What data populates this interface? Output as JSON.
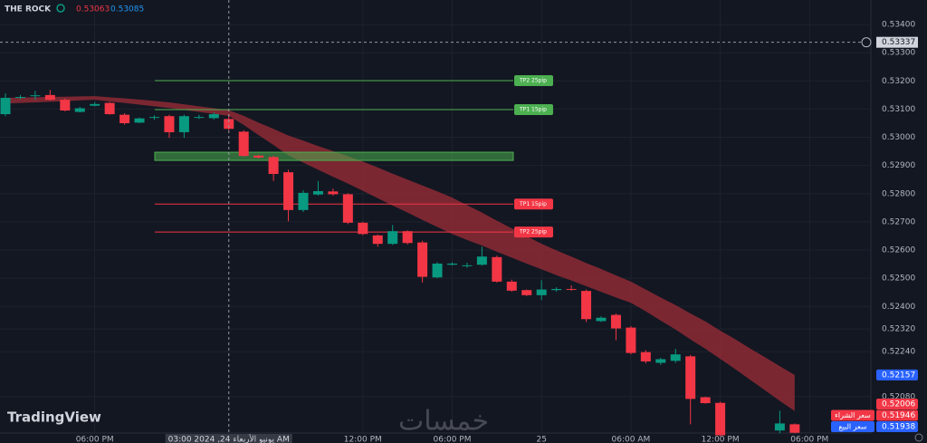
{
  "chart_data": {
    "type": "candlestick",
    "title": "THE ROCK",
    "header": {
      "values": [
        0.53063,
        0.53085
      ],
      "colors": [
        "#f23645",
        "#2196f3"
      ]
    },
    "watermarks": [
      "TradingView",
      "خمسات"
    ],
    "categories": [
      null,
      null,
      null,
      null,
      null,
      null,
      "06:00 PM",
      null,
      null,
      null,
      null,
      null,
      null,
      null,
      null,
      "03:00 2024 ,24 يونيو الأربعاء AM",
      null,
      null,
      null,
      null,
      null,
      null,
      null,
      null,
      "12:00 PM",
      null,
      null,
      null,
      null,
      null,
      "06:00 PM",
      null,
      null,
      null,
      null,
      null,
      "25",
      null,
      null,
      null,
      null,
      null,
      "06:00 AM",
      null,
      null,
      null,
      null,
      null,
      "12:00 PM",
      null,
      null,
      null,
      null,
      null,
      "06:00 PM"
    ],
    "open": [
      0.53082,
      0.5314,
      0.53146,
      0.5315,
      0.53133,
      0.5309,
      0.53112,
      0.53122,
      0.5308,
      0.53052,
      0.5307,
      0.53075,
      0.53018,
      0.5307,
      0.53068,
      0.53065,
      0.5302,
      0.52935,
      0.5293,
      0.52876,
      0.52742,
      0.52797,
      0.52808,
      0.52798,
      0.52697,
      0.52652,
      0.52622,
      0.52667,
      0.52627,
      0.52503,
      0.52548,
      0.52543,
      0.52548,
      0.52575,
      0.52488,
      0.52458,
      0.5244,
      0.52458,
      0.52462,
      0.52455,
      0.52348,
      0.5237,
      0.52325,
      0.52238,
      0.522,
      0.52207,
      0.52223,
      0.52078,
      0.52058,
      null,
      null,
      null,
      0.5196,
      0.51982,
      null
    ],
    "high": [
      0.53156,
      0.5315,
      0.53165,
      0.53168,
      0.53138,
      0.53108,
      0.53125,
      0.53125,
      0.53085,
      0.5307,
      0.53078,
      0.5308,
      0.5308,
      0.5308,
      0.53088,
      0.53083,
      0.53025,
      0.52938,
      0.52935,
      0.52885,
      0.52812,
      0.52845,
      0.52818,
      0.52802,
      0.527,
      0.52655,
      0.52689,
      0.5267,
      0.52633,
      0.52557,
      0.52557,
      0.52555,
      0.52612,
      0.5258,
      0.52495,
      0.5246,
      0.52493,
      0.52468,
      0.52475,
      0.5246,
      0.52365,
      0.52375,
      0.5233,
      0.52245,
      0.52218,
      0.5225,
      0.52228,
      0.5208,
      0.52062,
      null,
      null,
      null,
      0.5203,
      0.51985,
      null
    ],
    "low": [
      0.53075,
      0.53135,
      0.53133,
      0.5313,
      0.53092,
      0.53088,
      0.5311,
      0.5308,
      0.53045,
      0.5305,
      0.53062,
      0.52998,
      0.52998,
      0.53065,
      0.53063,
      0.53025,
      0.5293,
      0.52925,
      0.52845,
      0.52702,
      0.52735,
      0.52793,
      0.52793,
      0.52692,
      0.52653,
      0.52612,
      0.52618,
      0.5262,
      0.52485,
      0.525,
      0.52545,
      0.52537,
      0.52545,
      0.52485,
      0.52452,
      0.52437,
      0.52423,
      0.52452,
      0.52455,
      0.52345,
      0.52345,
      0.5228,
      0.5223,
      0.52198,
      0.52193,
      0.522,
      0.51982,
      0.52055,
      0.5194,
      null,
      null,
      null,
      0.5195,
      0.5195,
      null
    ],
    "close": [
      0.5314,
      0.53143,
      0.53149,
      0.53133,
      0.53095,
      0.53103,
      0.53118,
      0.53082,
      0.5305,
      0.53067,
      0.53072,
      0.53018,
      0.53075,
      0.53072,
      0.53082,
      0.5303,
      0.52934,
      0.52928,
      0.5287,
      0.52742,
      0.52803,
      0.52809,
      0.52798,
      0.52697,
      0.52657,
      0.52622,
      0.52667,
      0.52625,
      0.52505,
      0.52552,
      0.52552,
      0.52546,
      0.52577,
      0.52488,
      0.52456,
      0.5244,
      0.5246,
      0.52462,
      0.52459,
      0.52355,
      0.5236,
      0.52322,
      0.52235,
      0.52205,
      0.52213,
      0.5223,
      0.52072,
      0.52057,
      0.51943,
      null,
      null,
      null,
      0.51985,
      0.51952,
      null
    ],
    "up_color": "#089981",
    "down_color": "#f23645",
    "band": {
      "color": "#8e2a35",
      "upper": [
        0.5314,
        0.53141,
        0.53142,
        0.53143,
        0.53144,
        0.53145,
        0.53146,
        0.53142,
        0.53138,
        0.53134,
        0.53129,
        0.53124,
        0.53117,
        0.5311,
        0.53103,
        0.53096,
        0.53076,
        0.53052,
        0.5303,
        0.53006,
        0.52988,
        0.52969,
        0.52951,
        0.52933,
        0.52914,
        0.52893,
        0.52871,
        0.5285,
        0.52829,
        0.52808,
        0.52786,
        0.52759,
        0.52733,
        0.52704,
        0.52677,
        0.52649,
        0.52622,
        0.52599,
        0.52577,
        0.52554,
        0.52533,
        0.5251,
        0.52488,
        0.5246,
        0.52432,
        0.52405,
        0.52375,
        0.52347,
        0.52314,
        0.52284,
        0.52251,
        0.5222,
        0.52188,
        0.52157,
        null
      ],
      "lower": [
        0.5312,
        0.53122,
        0.53124,
        0.53126,
        0.53128,
        0.53131,
        0.53133,
        0.53127,
        0.53122,
        0.53116,
        0.5311,
        0.53104,
        0.53097,
        0.5309,
        0.53083,
        0.53076,
        0.53044,
        0.53008,
        0.52973,
        0.52936,
        0.5291,
        0.52885,
        0.5286,
        0.52836,
        0.5281,
        0.52784,
        0.52758,
        0.52733,
        0.52707,
        0.52682,
        0.52657,
        0.52636,
        0.52616,
        0.52594,
        0.52573,
        0.52552,
        0.52532,
        0.52511,
        0.52492,
        0.52472,
        0.52452,
        0.52432,
        0.52413,
        0.52383,
        0.5235,
        0.52318,
        0.52283,
        0.5225,
        0.52214,
        0.52178,
        0.5214,
        0.52103,
        0.52065,
        0.52029,
        null
      ]
    },
    "levels": [
      {
        "name": "TP2 25pip",
        "value": 0.53201,
        "color": "#4caf50"
      },
      {
        "name": "TP1 15pip",
        "value": 0.53098,
        "color": "#4caf50"
      },
      {
        "name": "TP1 15pip",
        "value": 0.52763,
        "color": "#f23645"
      },
      {
        "name": "TP2 25pip",
        "value": 0.52664,
        "color": "#f23645"
      }
    ],
    "zone": {
      "values": [
        0.52918,
        0.52947
      ],
      "color": "#4caf50"
    },
    "crosshair": {
      "value": 0.53337,
      "index": 15
    },
    "price_tags": [
      {
        "value": 0.52157,
        "color": "#2962ff"
      },
      {
        "value": 0.52006,
        "color": "#f23645"
      },
      {
        "value": 0.51946,
        "name": "سعر الشراء",
        "color": "#f23645"
      },
      {
        "value": 0.51938,
        "name": "سعر البيع",
        "color": "#2962ff"
      }
    ],
    "ylim": [
      0.51951,
      0.53487
    ],
    "yticks": [
      {
        "value": 0.534,
        "label": "0.53400"
      },
      {
        "value": 0.533,
        "label": "0.53300"
      },
      {
        "value": 0.532,
        "label": "0.53200"
      },
      {
        "value": 0.531,
        "label": "0.53100"
      },
      {
        "value": 0.53,
        "label": "0.53000"
      },
      {
        "value": 0.529,
        "label": "0.52900"
      },
      {
        "value": 0.528,
        "label": "0.52800"
      },
      {
        "value": 0.527,
        "label": "0.52700"
      },
      {
        "value": 0.526,
        "label": "0.52600"
      },
      {
        "value": 0.525,
        "label": "0.52500"
      },
      {
        "value": 0.524,
        "label": "0.52400"
      },
      {
        "value": 0.5232,
        "label": "0.52320"
      },
      {
        "value": 0.5224,
        "label": "0.52240"
      },
      {
        "value": 0.5208,
        "label": "0.52080"
      }
    ],
    "grid": true
  }
}
